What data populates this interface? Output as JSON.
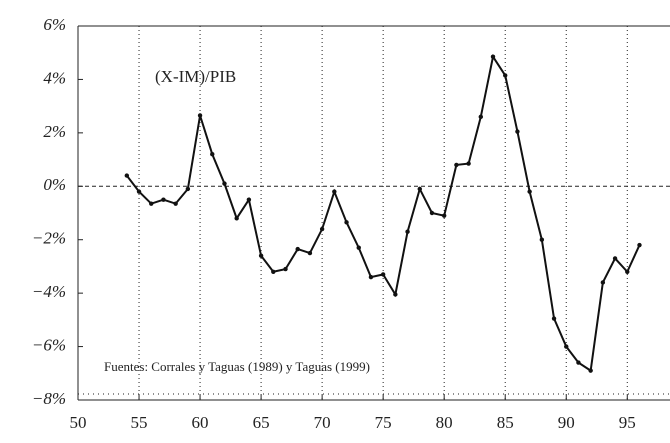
{
  "chart_data": {
    "type": "line",
    "series_label": "(X-IM)/PIB",
    "source": "Fuentes:  Corrales y Taguas (1989) y Taguas (1999)",
    "x": [
      54,
      55,
      56,
      57,
      58,
      59,
      60,
      61,
      62,
      63,
      64,
      65,
      66,
      67,
      68,
      69,
      70,
      71,
      72,
      73,
      74,
      75,
      76,
      77,
      78,
      79,
      80,
      81,
      82,
      83,
      84,
      85,
      86,
      87,
      88,
      89,
      90,
      91,
      92,
      93,
      94,
      95,
      96
    ],
    "values": [
      0.4,
      -0.2,
      -0.65,
      -0.5,
      -0.65,
      -0.1,
      2.65,
      1.2,
      0.1,
      -1.2,
      -0.5,
      -2.6,
      -3.2,
      -3.1,
      -2.35,
      -2.5,
      -1.6,
      -0.2,
      -1.35,
      -2.3,
      -3.4,
      -3.3,
      -4.05,
      -1.7,
      -0.1,
      -1.0,
      -1.1,
      0.8,
      0.85,
      2.6,
      4.85,
      4.15,
      2.05,
      -0.2,
      -2.0,
      -4.95,
      -6.0,
      -6.6,
      -6.9,
      -3.6,
      -2.7,
      -3.2,
      -2.2
    ],
    "color": "#111111",
    "xlim": [
      50,
      98.5
    ],
    "ylim": [
      -8,
      6
    ],
    "xticks": [
      50,
      55,
      60,
      65,
      70,
      75,
      80,
      85,
      90,
      95
    ],
    "yticks": [
      {
        "value": -8,
        "label": "−8%"
      },
      {
        "value": -6,
        "label": "−6%"
      },
      {
        "value": -4,
        "label": "−4%"
      },
      {
        "value": -2,
        "label": "−2%"
      },
      {
        "value": 0,
        "label": "0%"
      },
      {
        "value": 2,
        "label": "2%"
      },
      {
        "value": 4,
        "label": "4%"
      },
      {
        "value": 6,
        "label": "6%"
      }
    ],
    "x_grid": true,
    "zero_line": true
  }
}
